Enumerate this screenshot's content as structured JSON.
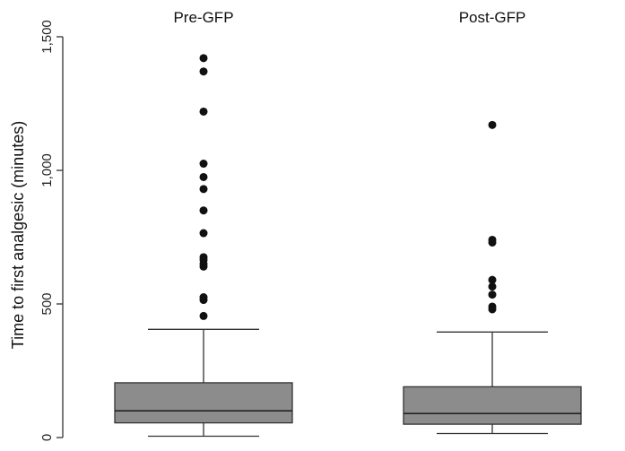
{
  "chart_data": {
    "type": "box",
    "ylabel": "Time to first analgesic (minutes)",
    "ylim": [
      0,
      1500
    ],
    "yticks": [
      0,
      500,
      1000,
      1500
    ],
    "ytick_labels": [
      "0",
      "500",
      "1,000",
      "1,500"
    ],
    "grid": false,
    "groups": [
      {
        "name": "Pre-GFP",
        "whisker_low": 5,
        "q1": 55,
        "median": 100,
        "q3": 205,
        "whisker_high": 405,
        "outliers": [
          455,
          515,
          525,
          640,
          650,
          665,
          675,
          765,
          850,
          930,
          975,
          1025,
          1220,
          1370,
          1420
        ]
      },
      {
        "name": "Post-GFP",
        "whisker_low": 15,
        "q1": 50,
        "median": 90,
        "q3": 190,
        "whisker_high": 395,
        "outliers": [
          480,
          490,
          535,
          565,
          590,
          730,
          740,
          1170
        ]
      }
    ]
  }
}
